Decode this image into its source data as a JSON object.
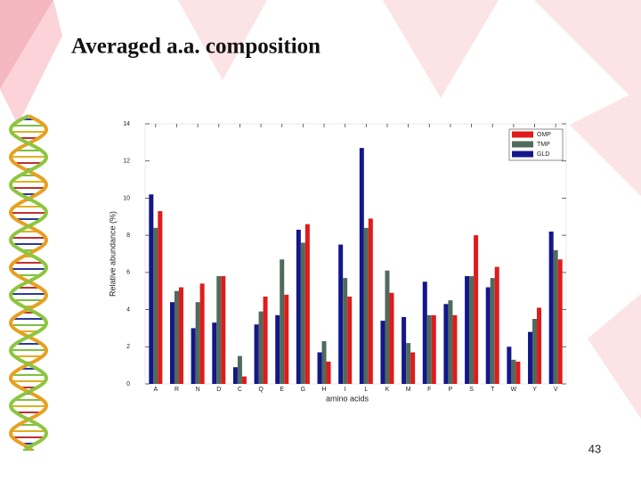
{
  "header": {
    "title": "Averaged a.a. composition"
  },
  "page_number": "43",
  "chart_data": {
    "type": "bar",
    "x_label": "amino acids",
    "y_label": "Relative abundance (%)",
    "categories": [
      "A",
      "R",
      "N",
      "D",
      "C",
      "Q",
      "E",
      "G",
      "H",
      "I",
      "L",
      "K",
      "M",
      "F",
      "P",
      "S",
      "T",
      "W",
      "Y",
      "V"
    ],
    "series": [
      {
        "name": "GLD",
        "color": "#14168a",
        "values": [
          10.2,
          4.4,
          3.0,
          3.3,
          0.9,
          3.2,
          3.7,
          8.3,
          1.7,
          7.5,
          12.7,
          3.4,
          3.6,
          5.5,
          4.3,
          5.8,
          5.2,
          2.0,
          2.8,
          8.2
        ]
      },
      {
        "name": "TMP",
        "color": "#4f6b5c",
        "values": [
          8.4,
          5.0,
          4.4,
          5.8,
          1.5,
          3.9,
          6.7,
          7.6,
          2.3,
          5.7,
          8.4,
          6.1,
          2.2,
          3.7,
          4.5,
          5.8,
          5.7,
          1.3,
          3.5,
          7.2
        ]
      },
      {
        "name": "OMP",
        "color": "#e01b1b",
        "values": [
          9.3,
          5.2,
          5.4,
          5.8,
          0.4,
          4.7,
          4.8,
          8.6,
          1.2,
          4.7,
          8.9,
          4.9,
          1.7,
          3.7,
          3.7,
          8.0,
          6.3,
          1.2,
          4.1,
          6.7
        ]
      }
    ],
    "ylim": [
      0,
      14
    ],
    "yticks": [
      0,
      2,
      4,
      6,
      8,
      10,
      12,
      14
    ],
    "grid": false,
    "legend": "top-right"
  }
}
